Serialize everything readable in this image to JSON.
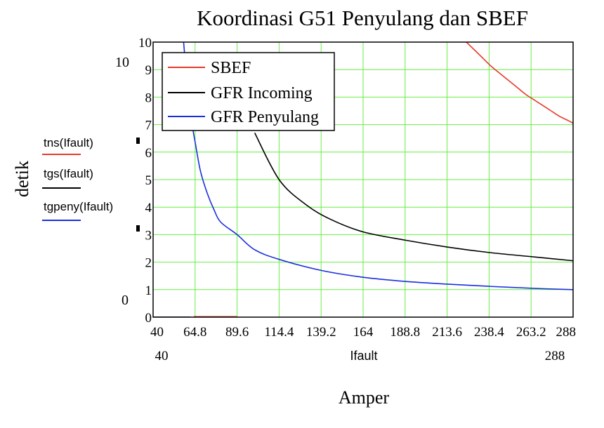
{
  "chart_data": {
    "type": "line",
    "title": "Koordinasi G51 Penyulang dan SBEF",
    "xlabel": "Amper",
    "ylabel": "detik",
    "x_variable": "Ifault",
    "xlim": [
      40,
      288
    ],
    "ylim": [
      0,
      10
    ],
    "x_ticks": [
      40,
      64.8,
      89.6,
      114.4,
      139.2,
      164,
      188.8,
      213.6,
      238.4,
      263.2,
      288
    ],
    "x_tick_labels": [
      "40",
      "64.8",
      "89.6",
      "114.4",
      "139.2",
      "164",
      "188.8",
      "213.6",
      "238.4",
      "263.2",
      "288"
    ],
    "y_ticks": [
      0,
      1,
      2,
      3,
      4,
      5,
      6,
      7,
      8,
      9,
      10
    ],
    "y_tick_labels": [
      "0",
      "1",
      "2",
      "3",
      "4",
      "5",
      "6",
      "7",
      "8",
      "9",
      "10"
    ],
    "x_range_labels": {
      "min": "40",
      "max": "288"
    },
    "y_range_labels": {
      "min": "0",
      "max": "10"
    },
    "grid": true,
    "grid_color": "#66ee44",
    "legend_placement": "top-left",
    "series": [
      {
        "name": "SBEF",
        "expr": "tns(Ifault)",
        "color": "#e8392a",
        "x": [
          40,
          50,
          58,
          62,
          66,
          70,
          80,
          89.6,
          225,
          230,
          235,
          240,
          245,
          250,
          255,
          260,
          265,
          270,
          275,
          280,
          285,
          288
        ],
        "values": [
          0,
          0,
          0,
          0,
          0,
          0,
          0,
          0,
          10.0,
          9.7,
          9.4,
          9.1,
          8.85,
          8.6,
          8.35,
          8.1,
          7.9,
          7.7,
          7.5,
          7.3,
          7.15,
          7.05
        ]
      },
      {
        "name": "GFR Incoming",
        "expr": "tgs(Ifault)",
        "color": "#000000",
        "x": [
          40,
          50,
          55,
          60,
          65,
          70,
          80,
          90,
          100,
          114.4,
          130,
          145,
          164,
          188.8,
          213.6,
          238.4,
          263.2,
          288
        ],
        "values": [
          0,
          0,
          0,
          0,
          0,
          0,
          0,
          0,
          6.7,
          5.0,
          4.1,
          3.55,
          3.1,
          2.8,
          2.55,
          2.35,
          2.2,
          2.05
        ]
      },
      {
        "name": "GFR Penyulang",
        "expr": "tgpeny(Ifault)",
        "color": "#1a2ee0",
        "x": [
          40,
          50,
          55,
          58,
          60,
          62,
          65,
          68,
          72,
          76,
          80,
          89.6,
          100,
          114.4,
          139.2,
          164,
          188.8,
          213.6,
          238.4,
          263.2,
          288
        ],
        "values": [
          0,
          0,
          0,
          10.0,
          8.6,
          7.4,
          6.3,
          5.3,
          4.5,
          3.9,
          3.45,
          3.0,
          2.45,
          2.1,
          1.7,
          1.45,
          1.3,
          1.2,
          1.12,
          1.05,
          1.0
        ]
      }
    ]
  }
}
